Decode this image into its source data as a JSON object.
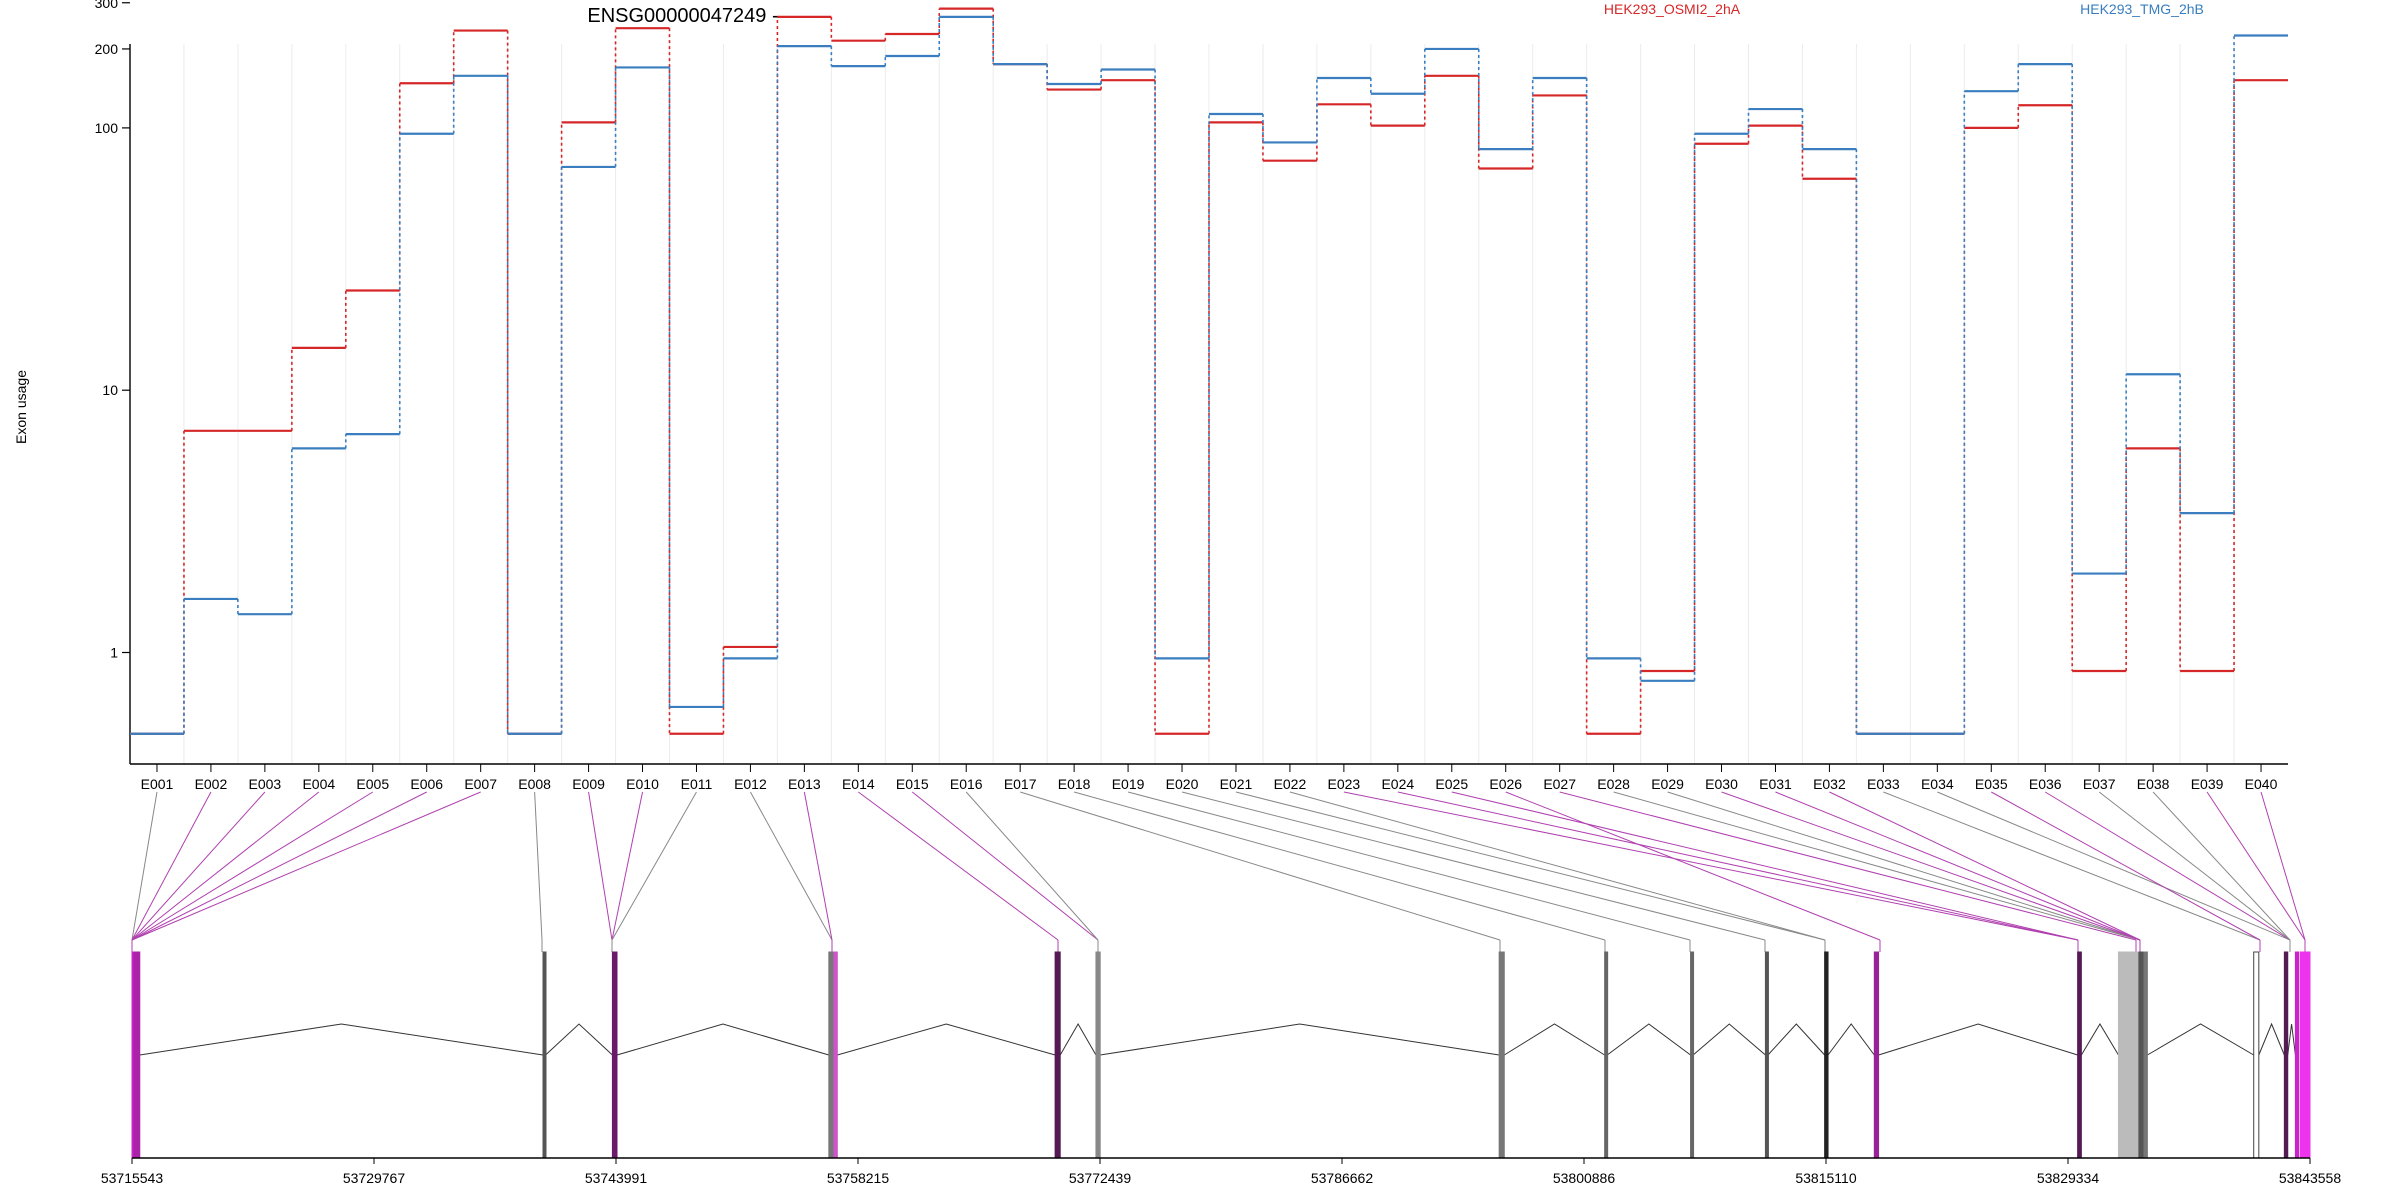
{
  "chart_data": {
    "type": "line",
    "title": "ENSG00000047249 -",
    "ylabel": "Exon usage",
    "xlabel": "",
    "y_scale": "log",
    "y_tick_labels": [
      "1",
      "10",
      "100",
      "200",
      "300"
    ],
    "y_tick_values": [
      1,
      10,
      100,
      200,
      300
    ],
    "categories": [
      "E001",
      "E002",
      "E003",
      "E004",
      "E005",
      "E006",
      "E007",
      "E008",
      "E009",
      "E010",
      "E011",
      "E012",
      "E013",
      "E014",
      "E015",
      "E016",
      "E017",
      "E018",
      "E019",
      "E020",
      "E021",
      "E022",
      "E023",
      "E024",
      "E025",
      "E026",
      "E027",
      "E028",
      "E029",
      "E030",
      "E031",
      "E032",
      "E033",
      "E034",
      "E035",
      "E036",
      "E037",
      "E038",
      "E039",
      "E040"
    ],
    "legend_placement": "top",
    "series": [
      {
        "name": "HEK293_OSMI2_2hA",
        "color": "#d62728",
        "values": [
          0.49,
          7.0,
          7.0,
          14.5,
          24,
          148,
          235,
          0.49,
          105,
          240,
          0.49,
          1.05,
          265,
          215,
          228,
          285,
          175,
          140,
          152,
          0.49,
          105,
          75,
          123,
          102,
          158,
          70,
          133,
          0.49,
          0.85,
          87,
          102,
          64,
          0.49,
          0.49,
          100,
          122,
          0.85,
          6.0,
          0.85,
          152
        ]
      },
      {
        "name": "HEK293_TMG_2hB",
        "color": "#3a7ebf",
        "values": [
          0.49,
          1.6,
          1.4,
          6.0,
          6.8,
          95,
          158,
          0.49,
          71,
          170,
          0.62,
          0.95,
          205,
          172,
          188,
          265,
          175,
          147,
          167,
          0.95,
          113,
          88,
          155,
          135,
          200,
          83,
          155,
          0.95,
          0.78,
          95,
          118,
          83,
          0.49,
          0.49,
          138,
          175,
          2.0,
          11.5,
          3.4,
          225
        ]
      }
    ],
    "genomic_axis": {
      "tick_labels": [
        "53715543",
        "53729767",
        "53743991",
        "53758215",
        "53772439",
        "53786662",
        "53800886",
        "53815110",
        "53829334",
        "53843558"
      ],
      "tick_values": [
        53715543,
        53729767,
        53743991,
        53758215,
        53772439,
        53786662,
        53800886,
        53815110,
        53829334,
        53843558
      ]
    },
    "exons": [
      {
        "start": 53715543,
        "end": 53715650,
        "color": "#cc22cc"
      },
      {
        "start": 53715650,
        "end": 53716000,
        "color": "#aa22aa"
      },
      {
        "start": 53739700,
        "end": 53739850,
        "color": "#555555"
      },
      {
        "start": 53743780,
        "end": 53744050,
        "color": "#6a1b6a"
      },
      {
        "start": 53756500,
        "end": 53756800,
        "color": "#777777"
      },
      {
        "start": 53756800,
        "end": 53757000,
        "color": "#cc55cc"
      },
      {
        "start": 53769800,
        "end": 53770100,
        "color": "#551a55"
      },
      {
        "start": 53772200,
        "end": 53772450,
        "color": "#888888"
      },
      {
        "start": 53795900,
        "end": 53796200,
        "color": "#777777"
      },
      {
        "start": 53802100,
        "end": 53802250,
        "color": "#666666"
      },
      {
        "start": 53807150,
        "end": 53807300,
        "color": "#666666"
      },
      {
        "start": 53811550,
        "end": 53811700,
        "color": "#555555"
      },
      {
        "start": 53815030,
        "end": 53815230,
        "color": "#222222"
      },
      {
        "start": 53817950,
        "end": 53818200,
        "color": "#992299"
      },
      {
        "start": 53829900,
        "end": 53830120,
        "color": "#551a55"
      },
      {
        "start": 53832300,
        "end": 53833500,
        "color": "#bbbbbb"
      },
      {
        "start": 53833500,
        "end": 53833800,
        "color": "#555555"
      },
      {
        "start": 53833800,
        "end": 53834000,
        "color": "#777777"
      },
      {
        "start": 53840250,
        "end": 53840550,
        "color": "#ffffff"
      },
      {
        "start": 53842050,
        "end": 53842250,
        "color": "#551a55"
      },
      {
        "start": 53842700,
        "end": 53842900,
        "color": "#cc22cc"
      },
      {
        "start": 53843000,
        "end": 53843558,
        "color": "#ee33ee"
      }
    ]
  }
}
